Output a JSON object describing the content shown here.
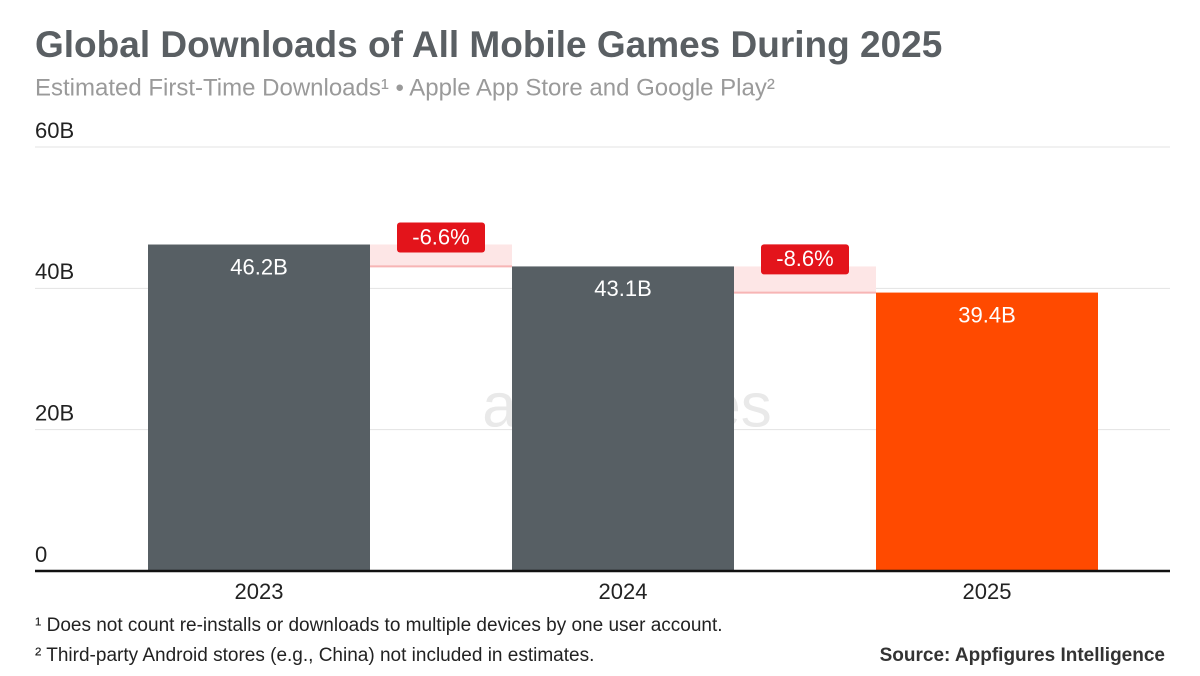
{
  "chart_data": {
    "type": "bar",
    "title": "Global Downloads of All Mobile Games During 2025",
    "subtitle": "Estimated First-Time Downloads¹ • Apple App Store and Google Play²",
    "categories": [
      "2023",
      "2024",
      "2025"
    ],
    "values": [
      46.2,
      43.1,
      39.4
    ],
    "value_labels": [
      "46.2B",
      "43.1B",
      "39.4B"
    ],
    "colors": [
      "#575f64",
      "#575f64",
      "#ff4a00"
    ],
    "changes": [
      -6.6,
      -8.6
    ],
    "change_labels": [
      "-6.6%",
      "-8.6%"
    ],
    "ylim": [
      0,
      60
    ],
    "yticks": [
      0,
      {
        "value": 20,
        "label": "20B"
      },
      {
        "value": 40,
        "label": "40B"
      },
      {
        "value": 60,
        "label": "60B"
      }
    ],
    "grid": true,
    "watermark": "appfigures",
    "footnotes": [
      "¹ Does not count re-installs or downloads to multiple devices by one user account.",
      "² Third-party Android stores (e.g., China) not included in estimates."
    ],
    "source": "Source: Appfigures Intelligence"
  }
}
